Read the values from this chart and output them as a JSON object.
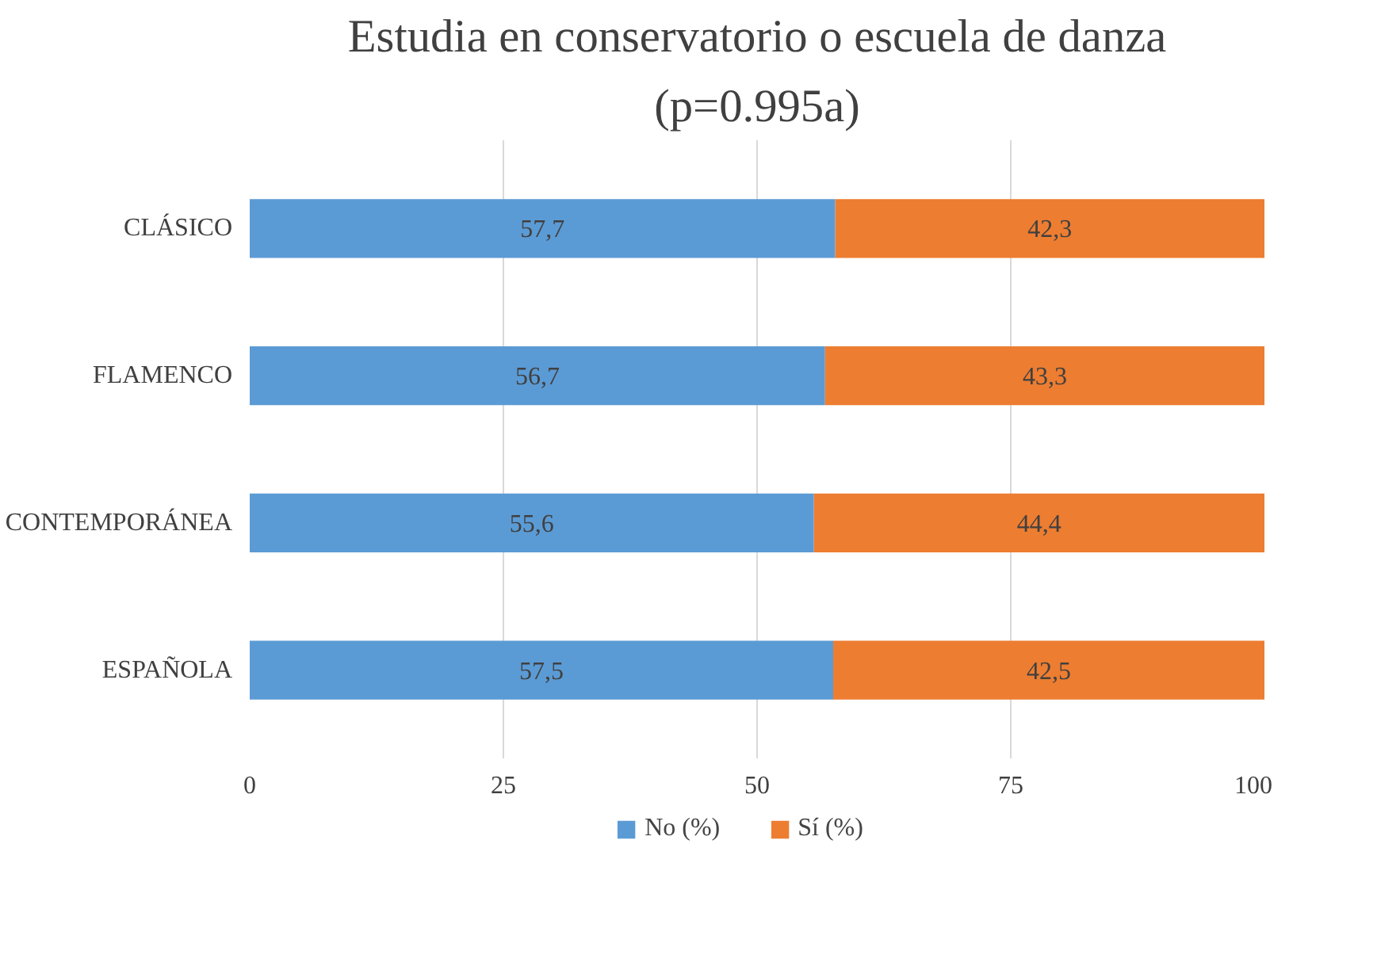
{
  "chart_data": {
    "type": "bar",
    "orientation": "horizontal",
    "stacked": true,
    "title": "Estudia en conservatorio o escuela de danza",
    "subtitle": "(p=0.995a)",
    "categories": [
      "CLÁSICO",
      "FLAMENCO",
      "CONTEMPORÁNEA",
      "ESPAÑOLA"
    ],
    "series": [
      {
        "name": "No (%)",
        "color": "#5b9bd5",
        "values": [
          57.7,
          56.7,
          55.6,
          57.5
        ],
        "value_labels": [
          "57,7",
          "56,7",
          "55,6",
          "57,5"
        ]
      },
      {
        "name": "Sí (%)",
        "color": "#ed7d31",
        "values": [
          42.3,
          43.3,
          44.4,
          42.5
        ],
        "value_labels": [
          "42,3",
          "43,3",
          "44,4",
          "42,5"
        ]
      }
    ],
    "xlim": [
      0,
      100
    ],
    "xticks": [
      0,
      25,
      50,
      75,
      100
    ],
    "grid": "x",
    "legend": "bottom"
  }
}
